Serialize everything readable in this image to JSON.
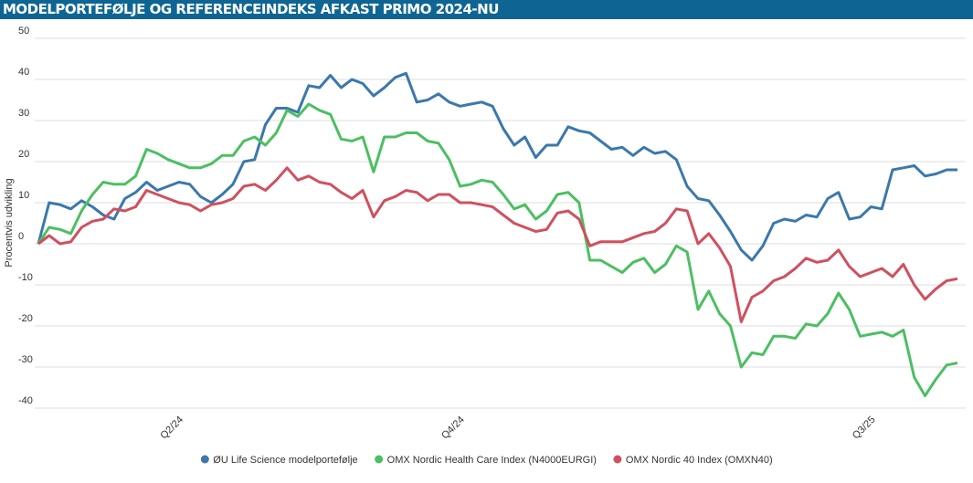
{
  "chart_data": {
    "type": "line",
    "title": "MODELPORTEFØLJE OG REFERENCEINDEKS AFKAST PRIMO 2024-NU",
    "y_label": "Procentvis udvikling",
    "categories": [
      null,
      null,
      null,
      null,
      null,
      null,
      null,
      null,
      null,
      null,
      null,
      null,
      null,
      "Q2/24",
      null,
      null,
      null,
      null,
      null,
      null,
      null,
      null,
      null,
      null,
      null,
      null,
      null,
      null,
      null,
      null,
      null,
      null,
      null,
      null,
      null,
      null,
      null,
      null,
      null,
      "Q4/24",
      null,
      null,
      null,
      null,
      null,
      null,
      null,
      null,
      null,
      null,
      null,
      null,
      null,
      null,
      null,
      null,
      null,
      null,
      null,
      null,
      null,
      null,
      null,
      null,
      null,
      null,
      null,
      null,
      null,
      null,
      null,
      null,
      null,
      null,
      null,
      null,
      null,
      "Q3/25",
      null,
      null,
      null,
      null,
      null,
      null,
      null,
      null
    ],
    "series": [
      {
        "name": "ØU Life Science modelportefølje",
        "color": "#3b78ad",
        "values": [
          0,
          10,
          9.5,
          8.5,
          10.5,
          9,
          7,
          6,
          11,
          12.5,
          15,
          13,
          14,
          15,
          14.5,
          11.5,
          10,
          12,
          14.5,
          20,
          20.5,
          29,
          33,
          33,
          32,
          38.5,
          38,
          41,
          38,
          40,
          39,
          36,
          38,
          40.5,
          41.5,
          34.5,
          35,
          36.5,
          34.5,
          33.5,
          34,
          34.5,
          33.5,
          28,
          24,
          26,
          21,
          24,
          24,
          28.5,
          27.5,
          27,
          25,
          23,
          23.5,
          21.5,
          23.5,
          22,
          22.5,
          20.5,
          14,
          11,
          10.5,
          7,
          3,
          -1.5,
          -4,
          -0.5,
          5,
          6,
          5.5,
          7,
          6.5,
          11,
          12.5,
          6,
          6.5,
          9,
          8.5,
          18,
          18.5,
          19,
          16.5,
          17,
          18,
          18
        ]
      },
      {
        "name": "OMX Nordic Health Care Index (N4000EURGI)",
        "color": "#4cbf62",
        "values": [
          0,
          4,
          3.5,
          2.5,
          8,
          12,
          15,
          14.5,
          14.5,
          16.5,
          23,
          22,
          20.5,
          19.5,
          18.5,
          18.5,
          19.5,
          21.5,
          21.5,
          25,
          26,
          24,
          27,
          32.5,
          31,
          34,
          32.5,
          31.5,
          25.5,
          25,
          26,
          17.5,
          26,
          26,
          27,
          27,
          25,
          24.5,
          20.5,
          14,
          14.5,
          15.5,
          15,
          12,
          8.5,
          9.5,
          6,
          8,
          12,
          12.5,
          10,
          -4,
          -4,
          -5.5,
          -7,
          -4.5,
          -3.5,
          -7,
          -5,
          -0.5,
          -2,
          -16,
          -11.5,
          -17,
          -20,
          -30,
          -26.5,
          -27,
          -22.5,
          -22.5,
          -23,
          -19.5,
          -20,
          -17,
          -12,
          -16,
          -22.5,
          -22,
          -21.5,
          -22.5,
          -21,
          -32.5,
          -37,
          -33,
          -29.5,
          -29
        ]
      },
      {
        "name": "OMX Nordic 40 Index (OMXN40)",
        "color": "#d0505f",
        "values": [
          0,
          2,
          0,
          0.5,
          4,
          5.5,
          6,
          8.5,
          8,
          9,
          13,
          12,
          11,
          10,
          9.5,
          8,
          9.5,
          10,
          11,
          14,
          14.5,
          13,
          15.5,
          18.5,
          15.5,
          16.5,
          15,
          14.5,
          12.5,
          11,
          13,
          6.5,
          10.5,
          11.5,
          13,
          12.5,
          10.5,
          12,
          12,
          10,
          10,
          9.5,
          9,
          7,
          5,
          4,
          3,
          3.5,
          7.5,
          8,
          6,
          -0.5,
          0.5,
          0.5,
          0.5,
          1.5,
          2.5,
          3,
          5,
          8.5,
          8,
          0,
          2.5,
          -1,
          -5.5,
          -19,
          -13,
          -11.5,
          -9,
          -8,
          -6,
          -3.5,
          -4.5,
          -4,
          -1.5,
          -5.5,
          -8,
          -7,
          -6,
          -8,
          -5,
          -10,
          -13.5,
          -11,
          -9,
          -8.5
        ]
      }
    ],
    "ylim": [
      -40,
      50
    ],
    "yticks": [
      -40,
      -30,
      -20,
      -10,
      0,
      10,
      20,
      30,
      40,
      50
    ],
    "grid": true,
    "legend": "bottom"
  }
}
